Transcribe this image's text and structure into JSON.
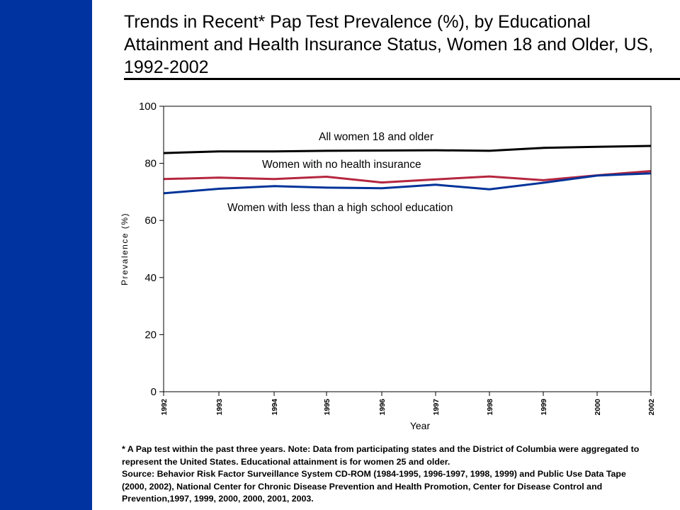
{
  "slide": {
    "title": "Trends in Recent* Pap Test Prevalence (%), by Educational Attainment and Health Insurance Status, Women 18 and Older, US, 1992-2002",
    "accent_color": "#0033a0",
    "footnote": "* A Pap test within the past three years. Note: Data from participating states and the District of Columbia were aggregated to represent the United States.  Educational attainment is for women 25 and older.",
    "source": "Source: Behavior Risk Factor Surveillance System CD-ROM (1984-1995, 1996-1997, 1998, 1999) and Public Use Data Tape (2000, 2002), National Center for Chronic Disease Prevention and Health Promotion, Center for Disease Control and Prevention,1997, 1999, 2000, 2000, 2001, 2003."
  },
  "chart_data": {
    "type": "line",
    "title": "",
    "xlabel": "Year",
    "ylabel": "Prevalence (%)",
    "ylim": [
      0,
      100
    ],
    "yticks": [
      0,
      20,
      40,
      60,
      80,
      100
    ],
    "categories": [
      "1992",
      "1993",
      "1994",
      "1995",
      "1996",
      "1997",
      "1998",
      "1999",
      "2000",
      "2002"
    ],
    "grid": false,
    "legend": "inline labels",
    "series": [
      {
        "name": "All women 18 and older",
        "color": "#000000",
        "values": [
          83.6,
          84.2,
          84.2,
          84.4,
          84.5,
          84.6,
          84.4,
          85.4,
          85.8,
          86.1
        ]
      },
      {
        "name": "Women with no health insurance",
        "color": "#b5263f",
        "values": [
          74.5,
          75.0,
          74.5,
          75.3,
          73.3,
          74.4,
          75.4,
          74.1,
          75.8,
          77.3
        ]
      },
      {
        "name": "Women with less than a high school education",
        "color": "#003399",
        "values": [
          69.5,
          71.1,
          72.0,
          71.5,
          71.3,
          72.5,
          70.9,
          73.2,
          75.7,
          76.5
        ]
      }
    ]
  }
}
